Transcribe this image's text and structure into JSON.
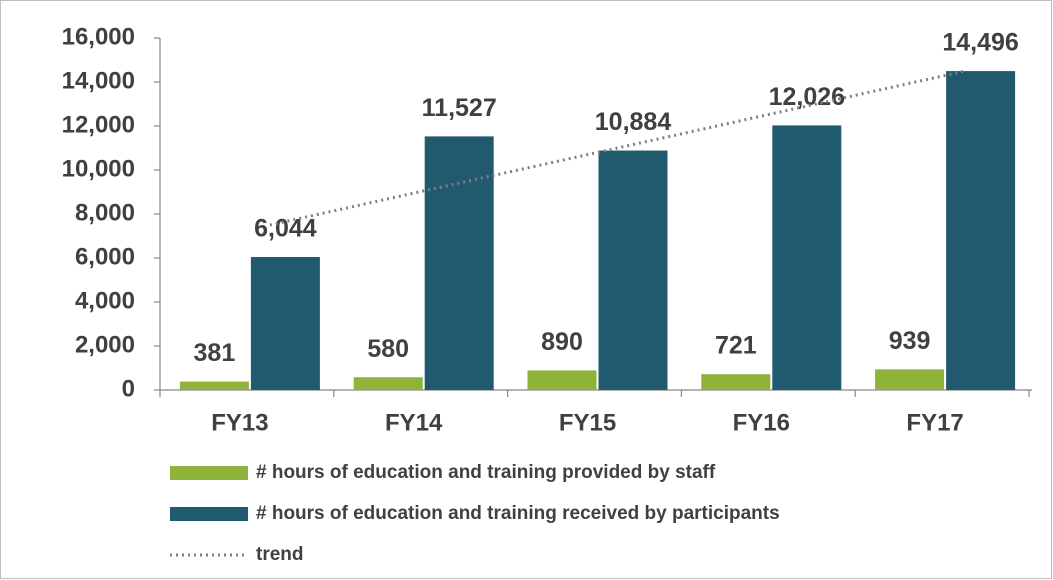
{
  "chart_data": {
    "type": "bar",
    "categories": [
      "FY13",
      "FY14",
      "FY15",
      "FY16",
      "FY17"
    ],
    "series": [
      {
        "name": "# hours of education and training provided by staff",
        "color": "#8db33a",
        "values": [
          381,
          580,
          890,
          721,
          939
        ]
      },
      {
        "name": "# hours of education and training received by participants",
        "color": "#215a6e",
        "values": [
          6044,
          11527,
          10884,
          12026,
          14496
        ],
        "value_labels": [
          "6,044",
          "11,527",
          "10,884",
          "12,026",
          "14,496"
        ]
      },
      {
        "name": "trend",
        "type": "line",
        "color": "#7f7f7f",
        "values": [
          7500,
          9250,
          11000,
          12750,
          14500
        ]
      }
    ],
    "ylim": [
      0,
      16000
    ],
    "yticks": [
      0,
      {
        "value": 2000,
        "label": "2,000"
      },
      {
        "value": 4000,
        "label": "4,000"
      },
      {
        "value": 6000,
        "label": "6,000"
      },
      {
        "value": 8000,
        "label": "8,000"
      },
      {
        "value": 10000,
        "label": "10,000"
      },
      {
        "value": 12000,
        "label": "12,000"
      },
      {
        "value": 14000,
        "label": "14,000"
      },
      {
        "value": 16000,
        "label": "16,000"
      }
    ],
    "grid": false
  }
}
